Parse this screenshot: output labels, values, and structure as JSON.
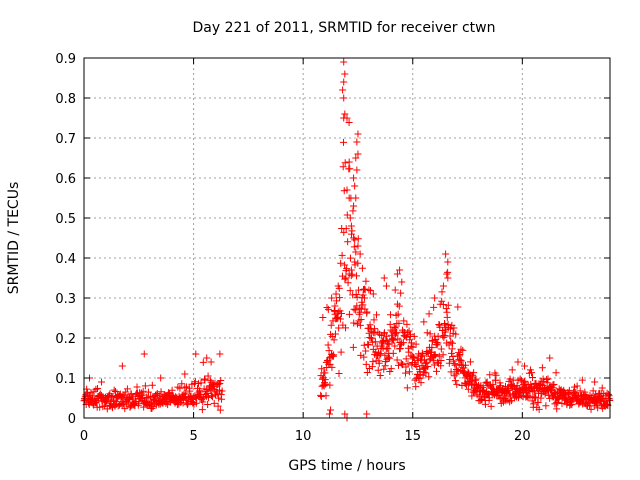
{
  "chart_data": {
    "type": "scatter",
    "title": "Day 221 of 2011, SRMTID for receiver ctwn",
    "xlabel": "GPS time / hours",
    "ylabel": "SRMTID / TECUs",
    "xlim": [
      0,
      24
    ],
    "ylim": [
      0,
      0.9
    ],
    "x_ticks": [
      0,
      5,
      10,
      15,
      20
    ],
    "y_ticks": [
      0,
      0.1,
      0.2,
      0.3,
      0.4,
      0.5,
      0.6,
      0.7,
      0.8,
      0.9
    ],
    "grid": true,
    "marker": "+",
    "color": "#ff0000",
    "series": [
      {
        "name": "ctwn",
        "segments": [
          {
            "x_start": 0.0,
            "x_end": 6.3,
            "step": 0.02,
            "envelope": [
              [
                0.0,
                0.05,
                0.02
              ],
              [
                1.0,
                0.045,
                0.02
              ],
              [
                2.0,
                0.045,
                0.02
              ],
              [
                3.0,
                0.045,
                0.02
              ],
              [
                4.0,
                0.045,
                0.02
              ],
              [
                5.0,
                0.055,
                0.03
              ],
              [
                5.6,
                0.06,
                0.035
              ],
              [
                6.3,
                0.065,
                0.04
              ]
            ]
          },
          {
            "x_start": 10.8,
            "x_end": 24.0,
            "step": 0.016,
            "envelope": [
              [
                10.8,
                0.08,
                0.05
              ],
              [
                11.2,
                0.16,
                0.08
              ],
              [
                11.6,
                0.25,
                0.12
              ],
              [
                11.9,
                0.45,
                0.25
              ],
              [
                12.2,
                0.4,
                0.22
              ],
              [
                12.5,
                0.3,
                0.15
              ],
              [
                13.0,
                0.2,
                0.08
              ],
              [
                13.5,
                0.17,
                0.06
              ],
              [
                14.0,
                0.2,
                0.07
              ],
              [
                14.5,
                0.22,
                0.08
              ],
              [
                15.0,
                0.15,
                0.06
              ],
              [
                15.5,
                0.12,
                0.05
              ],
              [
                16.0,
                0.18,
                0.07
              ],
              [
                16.5,
                0.22,
                0.08
              ],
              [
                17.0,
                0.15,
                0.06
              ],
              [
                17.5,
                0.1,
                0.04
              ],
              [
                18.0,
                0.07,
                0.03
              ],
              [
                19.0,
                0.06,
                0.025
              ],
              [
                20.0,
                0.07,
                0.03
              ],
              [
                21.0,
                0.065,
                0.03
              ],
              [
                22.0,
                0.05,
                0.02
              ],
              [
                23.0,
                0.045,
                0.02
              ],
              [
                24.0,
                0.04,
                0.02
              ]
            ]
          }
        ],
        "peaks": [
          [
            11.85,
            0.89
          ],
          [
            11.9,
            0.86
          ],
          [
            11.85,
            0.84
          ],
          [
            11.8,
            0.82
          ],
          [
            11.85,
            0.8
          ],
          [
            11.9,
            0.76
          ],
          [
            11.85,
            0.75
          ],
          [
            12.5,
            0.71
          ],
          [
            12.45,
            0.69
          ],
          [
            12.5,
            0.66
          ],
          [
            12.4,
            0.65
          ],
          [
            12.45,
            0.62
          ],
          [
            12.1,
            0.64
          ],
          [
            12.3,
            0.6
          ],
          [
            12.35,
            0.58
          ],
          [
            12.4,
            0.55
          ],
          [
            12.3,
            0.53
          ],
          [
            12.0,
            0.57
          ],
          [
            12.1,
            0.55
          ],
          [
            12.15,
            0.5
          ],
          [
            12.2,
            0.48
          ],
          [
            12.3,
            0.45
          ],
          [
            12.5,
            0.43
          ],
          [
            12.6,
            0.41
          ],
          [
            12.35,
            0.39
          ],
          [
            12.2,
            0.37
          ],
          [
            12.1,
            0.36
          ],
          [
            11.95,
            0.35
          ],
          [
            11.6,
            0.33
          ],
          [
            11.5,
            0.31
          ],
          [
            11.3,
            0.3
          ],
          [
            11.45,
            0.28
          ],
          [
            12.8,
            0.3
          ],
          [
            13.0,
            0.32
          ],
          [
            13.2,
            0.31
          ],
          [
            13.7,
            0.35
          ],
          [
            13.8,
            0.33
          ],
          [
            14.3,
            0.36
          ],
          [
            14.4,
            0.37
          ],
          [
            14.5,
            0.34
          ],
          [
            14.2,
            0.32
          ],
          [
            16.5,
            0.41
          ],
          [
            16.6,
            0.39
          ],
          [
            16.55,
            0.36
          ],
          [
            16.6,
            0.35
          ],
          [
            16.4,
            0.33
          ],
          [
            16.0,
            0.3
          ],
          [
            12.0,
            0.0
          ],
          [
            11.9,
            0.01
          ],
          [
            11.2,
            0.01
          ],
          [
            11.25,
            0.02
          ],
          [
            12.9,
            0.01
          ],
          [
            2.75,
            0.16
          ],
          [
            5.1,
            0.16
          ],
          [
            6.2,
            0.16
          ],
          [
            1.75,
            0.13
          ],
          [
            21.25,
            0.15
          ],
          [
            19.8,
            0.14
          ],
          [
            20.1,
            0.13
          ],
          [
            5.6,
            0.15
          ],
          [
            5.8,
            0.14
          ],
          [
            23.3,
            0.09
          ],
          [
            22.5,
            0.08
          ],
          [
            0.25,
            0.1
          ],
          [
            0.8,
            0.09
          ],
          [
            3.5,
            0.1
          ],
          [
            4.6,
            0.11
          ]
        ]
      }
    ]
  }
}
